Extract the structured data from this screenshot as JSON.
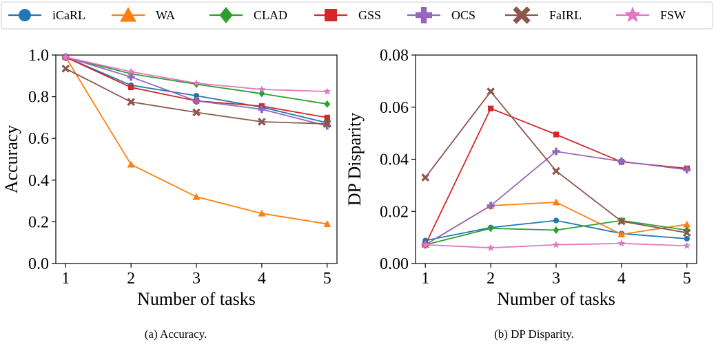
{
  "legend": [
    {
      "name": "iCaRL",
      "color": "#1f77b4",
      "marker": "circle"
    },
    {
      "name": "WA",
      "color": "#ff7f0e",
      "marker": "triangle"
    },
    {
      "name": "CLAD",
      "color": "#2ca02c",
      "marker": "diamond"
    },
    {
      "name": "GSS",
      "color": "#d62728",
      "marker": "square"
    },
    {
      "name": "OCS",
      "color": "#9467bd",
      "marker": "plus"
    },
    {
      "name": "FaIRL",
      "color": "#8c564b",
      "marker": "x"
    },
    {
      "name": "FSW",
      "color": "#e377c2",
      "marker": "star"
    }
  ],
  "captions": {
    "a": "(a) Accuracy.",
    "b": "(b) DP Disparity."
  },
  "chart_data": [
    {
      "type": "line",
      "title": "",
      "xlabel": "Number of tasks",
      "ylabel": "Accuracy",
      "x": [
        1,
        2,
        3,
        4,
        5
      ],
      "xticks": [
        "1",
        "2",
        "3",
        "4",
        "5"
      ],
      "xlim": [
        0.85,
        5.15
      ],
      "ylim": [
        0.0,
        1.0
      ],
      "yticks": [
        "0.0",
        "0.2",
        "0.4",
        "0.6",
        "0.8",
        "1.0"
      ],
      "ytick_values": [
        0.0,
        0.2,
        0.4,
        0.6,
        0.8,
        1.0
      ],
      "grid": false,
      "series": [
        {
          "name": "iCaRL",
          "values": [
            0.99,
            0.855,
            0.805,
            0.75,
            0.675
          ]
        },
        {
          "name": "WA",
          "values": [
            0.99,
            0.475,
            0.32,
            0.24,
            0.19
          ]
        },
        {
          "name": "CLAD",
          "values": [
            0.99,
            0.91,
            0.86,
            0.815,
            0.765
          ]
        },
        {
          "name": "GSS",
          "values": [
            0.99,
            0.845,
            0.78,
            0.755,
            0.7
          ]
        },
        {
          "name": "OCS",
          "values": [
            0.99,
            0.895,
            0.78,
            0.74,
            0.66
          ]
        },
        {
          "name": "FaIRL",
          "values": [
            0.935,
            0.775,
            0.725,
            0.68,
            0.67
          ]
        },
        {
          "name": "FSW",
          "values": [
            0.99,
            0.92,
            0.865,
            0.835,
            0.825
          ]
        }
      ]
    },
    {
      "type": "line",
      "title": "",
      "xlabel": "Number of tasks",
      "ylabel": "DP Disparity",
      "x": [
        1,
        2,
        3,
        4,
        5
      ],
      "xticks": [
        "1",
        "2",
        "3",
        "4",
        "5"
      ],
      "xlim": [
        0.85,
        5.15
      ],
      "ylim": [
        0.0,
        0.08
      ],
      "yticks": [
        "0.00",
        "0.02",
        "0.04",
        "0.06",
        "0.08"
      ],
      "ytick_values": [
        0.0,
        0.02,
        0.04,
        0.06,
        0.08
      ],
      "grid": false,
      "series": [
        {
          "name": "iCaRL",
          "values": [
            0.0088,
            0.0138,
            0.0165,
            0.0115,
            0.0095
          ]
        },
        {
          "name": "WA",
          "values": [
            0.0072,
            0.0222,
            0.0235,
            0.0112,
            0.015
          ]
        },
        {
          "name": "CLAD",
          "values": [
            0.0072,
            0.0135,
            0.0128,
            0.0165,
            0.0128
          ]
        },
        {
          "name": "GSS",
          "values": [
            0.0072,
            0.0595,
            0.0495,
            0.039,
            0.0365
          ]
        },
        {
          "name": "OCS",
          "values": [
            0.0072,
            0.0222,
            0.043,
            0.0392,
            0.036
          ]
        },
        {
          "name": "FaIRL",
          "values": [
            0.033,
            0.066,
            0.0355,
            0.0162,
            0.0118
          ]
        },
        {
          "name": "FSW",
          "values": [
            0.0072,
            0.006,
            0.0072,
            0.0077,
            0.0068
          ]
        }
      ]
    }
  ]
}
